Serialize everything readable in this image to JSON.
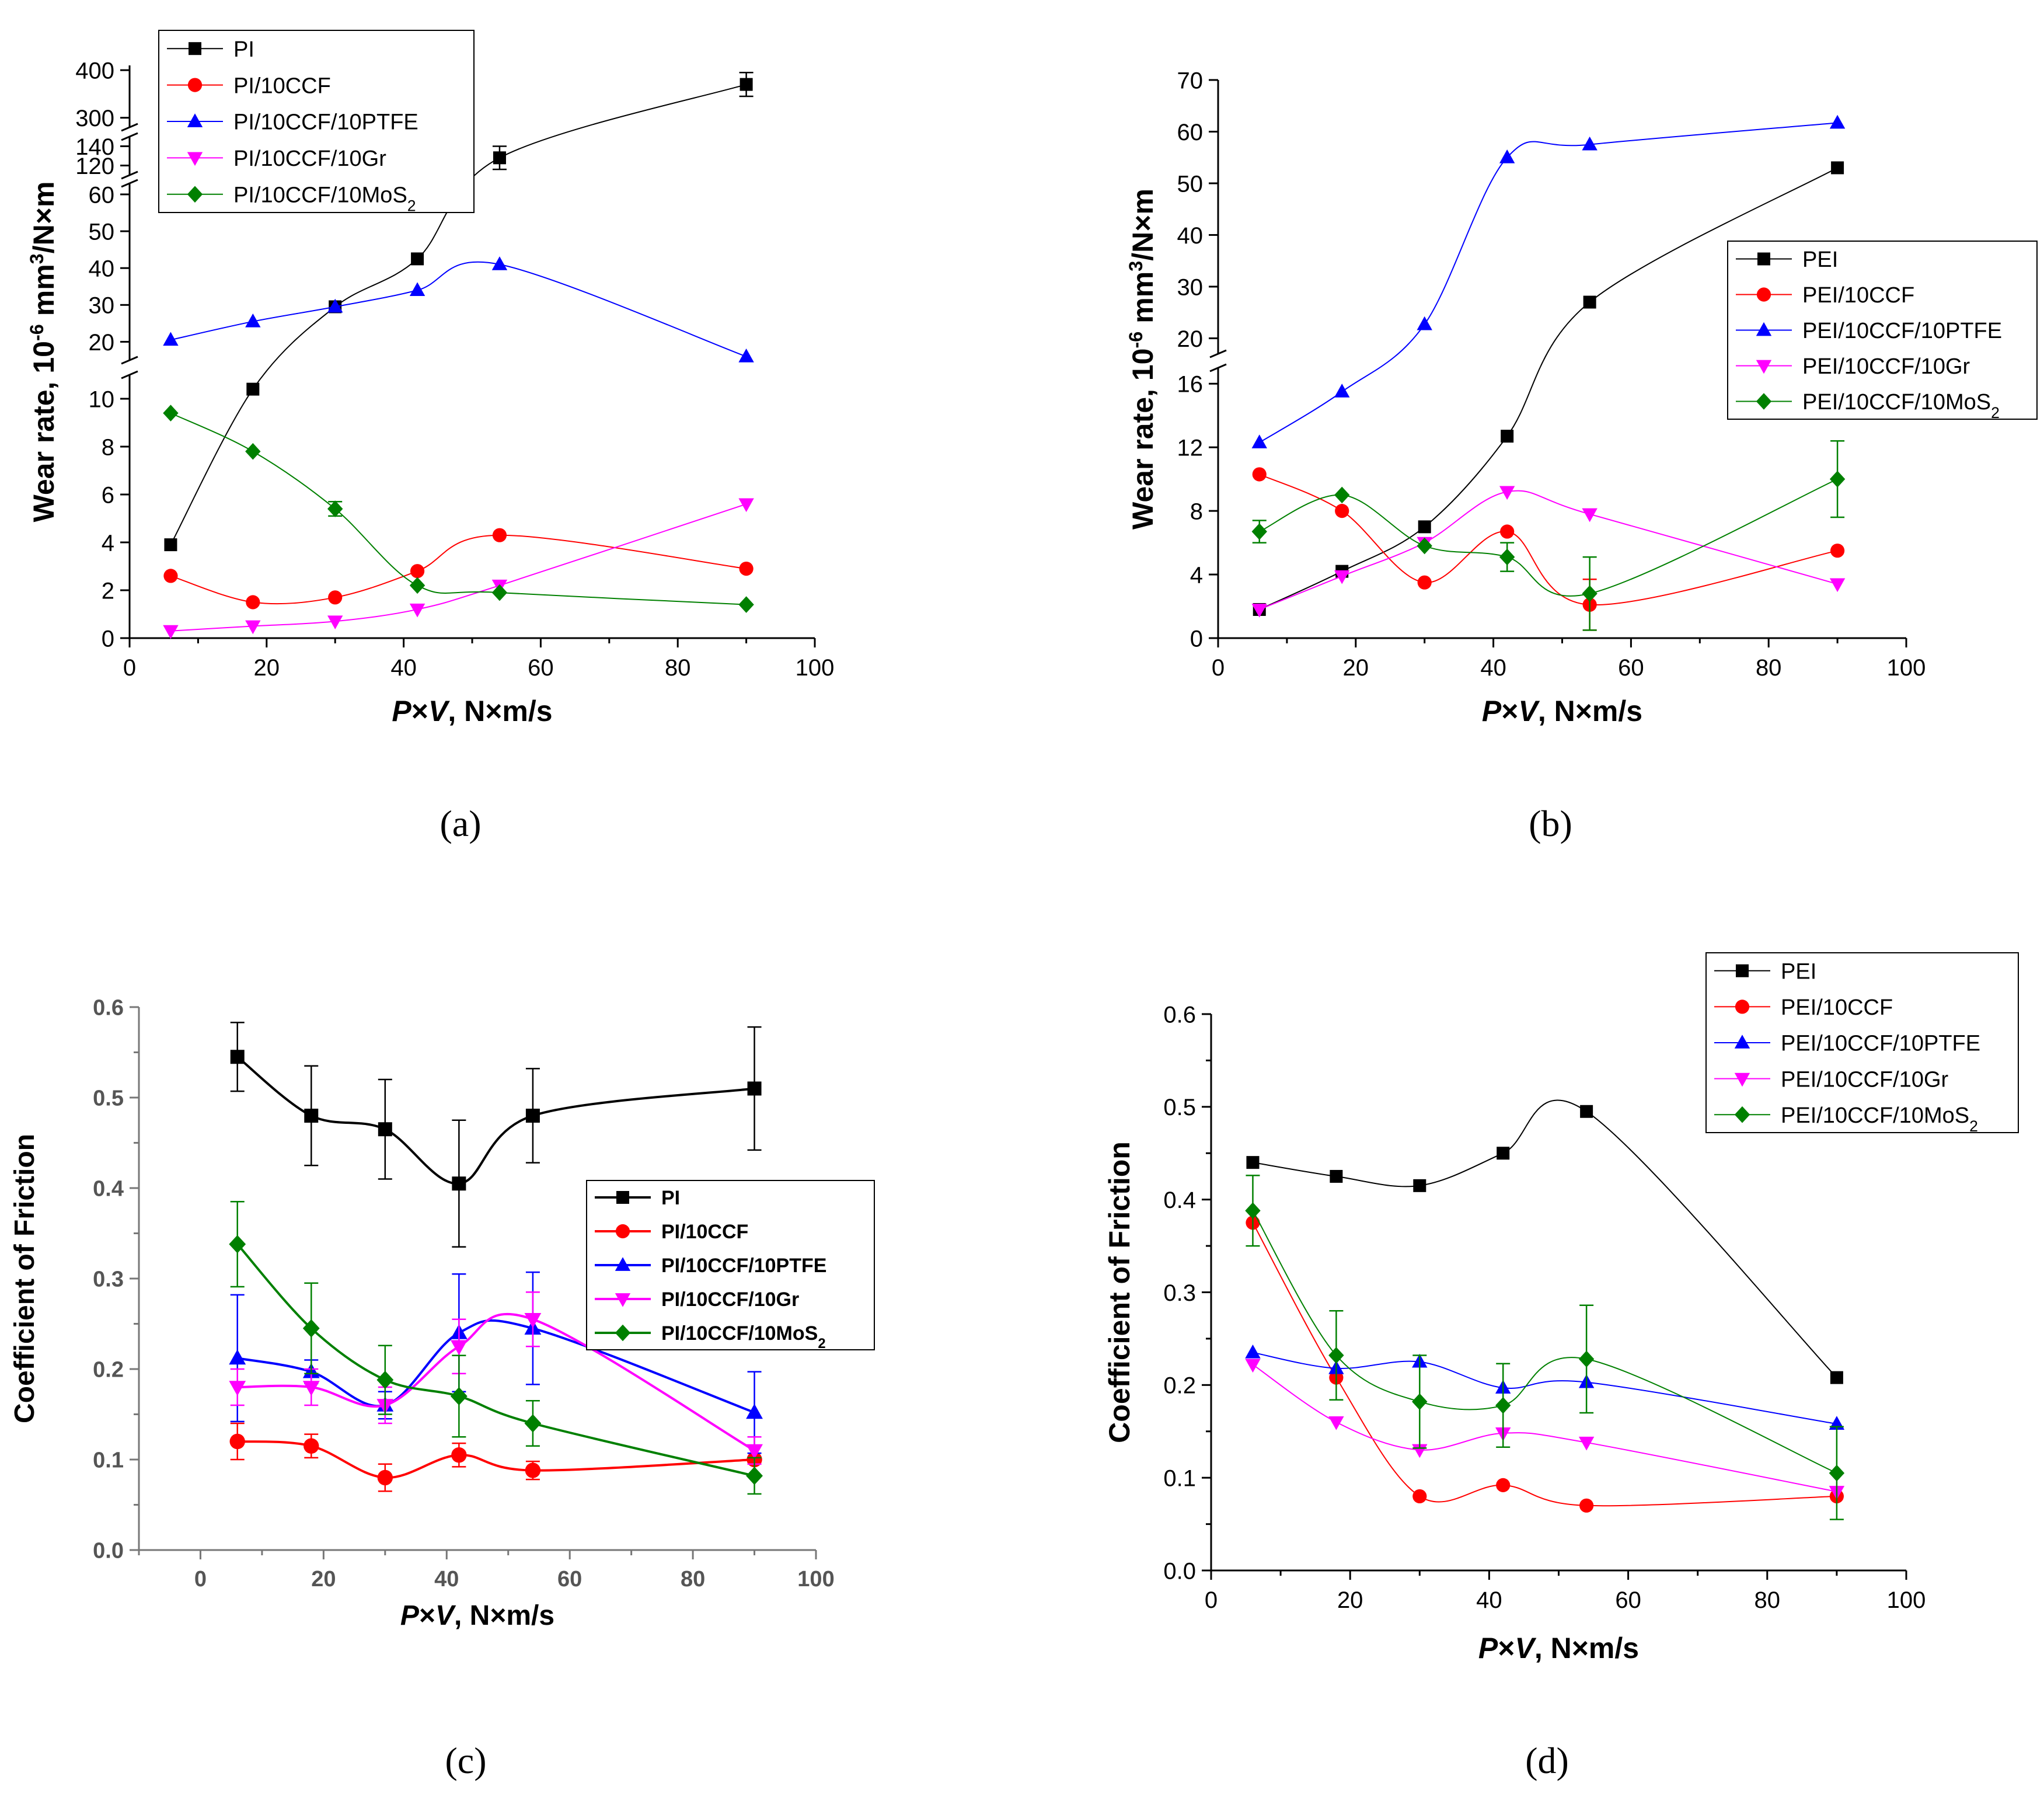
{
  "chart_data": [
    {
      "id": "a",
      "panel_label": "(a)",
      "type": "scatter",
      "xlabel": "P×V, N×m/s",
      "ylabel": "Wear rate, 10^-6 mm^3/N×m",
      "xlim": [
        0,
        100
      ],
      "xticks": [
        0,
        20,
        40,
        60,
        80,
        100
      ],
      "y_scale": "broken",
      "y_segments": [
        {
          "range": [
            0,
            11
          ],
          "ticks": [
            0,
            2,
            4,
            6,
            8,
            10
          ]
        },
        {
          "range": [
            15,
            63
          ],
          "ticks": [
            20,
            30,
            40,
            50,
            60
          ]
        },
        {
          "range": [
            110,
            150
          ],
          "ticks": [
            120,
            140
          ]
        },
        {
          "range": [
            280,
            410
          ],
          "ticks": [
            300,
            400
          ]
        }
      ],
      "legend": "top-left",
      "series": [
        {
          "name": "PI",
          "color": "#000000",
          "marker": "square",
          "x": [
            6,
            18,
            30,
            42,
            54,
            90
          ],
          "y": [
            3.9,
            10.4,
            29.5,
            42.5,
            128,
            370
          ],
          "err": [
            0,
            0,
            0,
            0,
            12,
            25
          ]
        },
        {
          "name": "PI/10CCF",
          "color": "#ff0000",
          "marker": "circle",
          "x": [
            6,
            18,
            30,
            42,
            54,
            90
          ],
          "y": [
            2.6,
            1.5,
            1.7,
            2.8,
            4.3,
            2.9
          ],
          "err": [
            0,
            0,
            0,
            0,
            0,
            0
          ]
        },
        {
          "name": "PI/10CCF/10PTFE",
          "color": "#0000ff",
          "marker": "triangle-up",
          "x": [
            6,
            18,
            30,
            42,
            54,
            90
          ],
          "y": [
            20.5,
            25.5,
            29.5,
            34,
            41,
            16
          ],
          "err": [
            0,
            0,
            0,
            0,
            0,
            0
          ]
        },
        {
          "name": "PI/10CCF/10Gr",
          "color": "#ff00ff",
          "marker": "triangle-down",
          "x": [
            6,
            18,
            30,
            42,
            54,
            90
          ],
          "y": [
            0.3,
            0.5,
            0.7,
            1.2,
            2.2,
            5.6
          ],
          "err": [
            0,
            0,
            0,
            0,
            0,
            0
          ]
        },
        {
          "name": "PI/10CCF/10MoS2",
          "color": "#008000",
          "marker": "diamond",
          "x": [
            6,
            18,
            30,
            42,
            54,
            90
          ],
          "y": [
            9.4,
            7.8,
            5.4,
            2.2,
            1.9,
            1.4
          ],
          "err": [
            0,
            0,
            0.3,
            0,
            0,
            0
          ]
        }
      ]
    },
    {
      "id": "b",
      "panel_label": "(b)",
      "type": "scatter",
      "xlabel": "P×V, N×m/s",
      "ylabel": "Wear rate, 10^-6 mm^3/N×m",
      "xlim": [
        0,
        100
      ],
      "xticks": [
        0,
        20,
        40,
        60,
        80,
        100
      ],
      "y_scale": "broken",
      "y_segments": [
        {
          "range": [
            0,
            17
          ],
          "ticks": [
            0,
            4,
            8,
            12,
            16
          ]
        },
        {
          "range": [
            17,
            70
          ],
          "ticks": [
            20,
            30,
            40,
            50,
            60,
            70
          ]
        }
      ],
      "legend": "right",
      "series": [
        {
          "name": "PEI",
          "color": "#000000",
          "marker": "square",
          "x": [
            6,
            18,
            30,
            42,
            54,
            90
          ],
          "y": [
            1.8,
            4.2,
            7.0,
            12.7,
            27,
            53
          ],
          "err": [
            0,
            0,
            0,
            0,
            0,
            0
          ]
        },
        {
          "name": "PEI/10CCF",
          "color": "#ff0000",
          "marker": "circle",
          "x": [
            6,
            18,
            30,
            42,
            54,
            90
          ],
          "y": [
            10.3,
            8.0,
            3.5,
            6.7,
            2.1,
            5.5
          ],
          "err": [
            0,
            0,
            0,
            0,
            1.6,
            0
          ]
        },
        {
          "name": "PEI/10CCF/10PTFE",
          "color": "#0000ff",
          "marker": "triangle-up",
          "x": [
            6,
            18,
            30,
            42,
            54,
            90
          ],
          "y": [
            12.3,
            15.5,
            22.7,
            55,
            57.5,
            61.7
          ],
          "err": [
            0,
            0,
            0,
            0,
            0,
            0
          ]
        },
        {
          "name": "PEI/10CCF/10Gr",
          "color": "#ff00ff",
          "marker": "triangle-down",
          "x": [
            6,
            18,
            30,
            42,
            54,
            90
          ],
          "y": [
            1.8,
            3.9,
            6.0,
            9.2,
            7.8,
            3.4
          ],
          "err": [
            0,
            0,
            0,
            0,
            0,
            0
          ]
        },
        {
          "name": "PEI/10CCF/10MoS2",
          "color": "#008000",
          "marker": "diamond",
          "x": [
            6,
            18,
            30,
            42,
            54,
            90
          ],
          "y": [
            6.7,
            9.0,
            5.8,
            5.1,
            2.8,
            10.0
          ],
          "err": [
            0.7,
            0,
            0,
            0.9,
            2.3,
            2.4
          ]
        }
      ]
    },
    {
      "id": "c",
      "panel_label": "(c)",
      "type": "line",
      "xlabel": "P×V, N×m/s",
      "ylabel": "Coefficient of Friction",
      "xlim": [
        -10,
        100
      ],
      "ylim": [
        0,
        0.6
      ],
      "xticks": [
        0,
        20,
        40,
        60,
        80,
        100
      ],
      "yticks": [
        0.0,
        0.1,
        0.2,
        0.3,
        0.4,
        0.5,
        0.6
      ],
      "legend": "right-middle",
      "series": [
        {
          "name": "PI",
          "color": "#000000",
          "marker": "square",
          "x": [
            6,
            18,
            30,
            42,
            54,
            90
          ],
          "y": [
            0.545,
            0.48,
            0.465,
            0.405,
            0.48,
            0.51
          ],
          "err": [
            0.038,
            0.055,
            0.055,
            0.07,
            0.052,
            0.068
          ]
        },
        {
          "name": "PI/10CCF",
          "color": "#ff0000",
          "marker": "circle",
          "x": [
            6,
            18,
            30,
            42,
            54,
            90
          ],
          "y": [
            0.12,
            0.115,
            0.08,
            0.105,
            0.088,
            0.1
          ],
          "err": [
            0.02,
            0.013,
            0.015,
            0.013,
            0.01,
            0.0
          ]
        },
        {
          "name": "PI/10CCF/10PTFE",
          "color": "#0000ff",
          "marker": "triangle-up",
          "x": [
            6,
            18,
            30,
            42,
            54,
            90
          ],
          "y": [
            0.212,
            0.197,
            0.16,
            0.24,
            0.245,
            0.152
          ],
          "err": [
            0.07,
            0.013,
            0.015,
            0.065,
            0.062,
            0.045
          ]
        },
        {
          "name": "PI/10CCF/10Gr",
          "color": "#ff00ff",
          "marker": "triangle-down",
          "x": [
            6,
            18,
            30,
            42,
            54,
            90
          ],
          "y": [
            0.18,
            0.18,
            0.16,
            0.225,
            0.255,
            0.11
          ],
          "err": [
            0.02,
            0.02,
            0.02,
            0.03,
            0.03,
            0.015
          ]
        },
        {
          "name": "PI/10CCF/10MoS2",
          "color": "#008000",
          "marker": "diamond",
          "x": [
            6,
            18,
            30,
            42,
            54,
            90
          ],
          "y": [
            0.338,
            0.245,
            0.188,
            0.17,
            0.14,
            0.082
          ],
          "err": [
            0.047,
            0.05,
            0.038,
            0.045,
            0.025,
            0.02
          ]
        }
      ]
    },
    {
      "id": "d",
      "panel_label": "(d)",
      "type": "scatter",
      "xlabel": "P×V, N×m/s",
      "ylabel": "Coefficient of Friction",
      "xlim": [
        0,
        100
      ],
      "ylim": [
        0,
        0.6
      ],
      "xticks": [
        0,
        20,
        40,
        60,
        80,
        100
      ],
      "yticks": [
        0.0,
        0.1,
        0.2,
        0.3,
        0.4,
        0.5,
        0.6
      ],
      "legend": "top-right",
      "series": [
        {
          "name": "PEI",
          "color": "#000000",
          "marker": "square",
          "x": [
            6,
            18,
            30,
            42,
            54,
            90
          ],
          "y": [
            0.44,
            0.425,
            0.415,
            0.45,
            0.495,
            0.208
          ],
          "err": [
            0,
            0,
            0,
            0,
            0,
            0
          ]
        },
        {
          "name": "PEI/10CCF",
          "color": "#ff0000",
          "marker": "circle",
          "x": [
            6,
            18,
            30,
            42,
            54,
            90
          ],
          "y": [
            0.375,
            0.208,
            0.08,
            0.092,
            0.07,
            0.08
          ],
          "err": [
            0,
            0,
            0,
            0,
            0,
            0
          ]
        },
        {
          "name": "PEI/10CCF/10PTFE",
          "color": "#0000ff",
          "marker": "triangle-up",
          "x": [
            6,
            18,
            30,
            42,
            54,
            90
          ],
          "y": [
            0.235,
            0.218,
            0.225,
            0.197,
            0.203,
            0.158
          ],
          "err": [
            0,
            0,
            0,
            0,
            0,
            0
          ]
        },
        {
          "name": "PEI/10CCF/10Gr",
          "color": "#ff00ff",
          "marker": "triangle-down",
          "x": [
            6,
            18,
            30,
            42,
            54,
            90
          ],
          "y": [
            0.222,
            0.16,
            0.13,
            0.148,
            0.138,
            0.085
          ],
          "err": [
            0,
            0,
            0,
            0,
            0,
            0
          ]
        },
        {
          "name": "PEI/10CCF/10MoS2",
          "color": "#008000",
          "marker": "diamond",
          "x": [
            6,
            18,
            30,
            42,
            54,
            90
          ],
          "y": [
            0.388,
            0.232,
            0.182,
            0.178,
            0.228,
            0.105
          ],
          "err": [
            0.038,
            0.048,
            0.05,
            0.045,
            0.058,
            0.05
          ]
        }
      ]
    }
  ]
}
